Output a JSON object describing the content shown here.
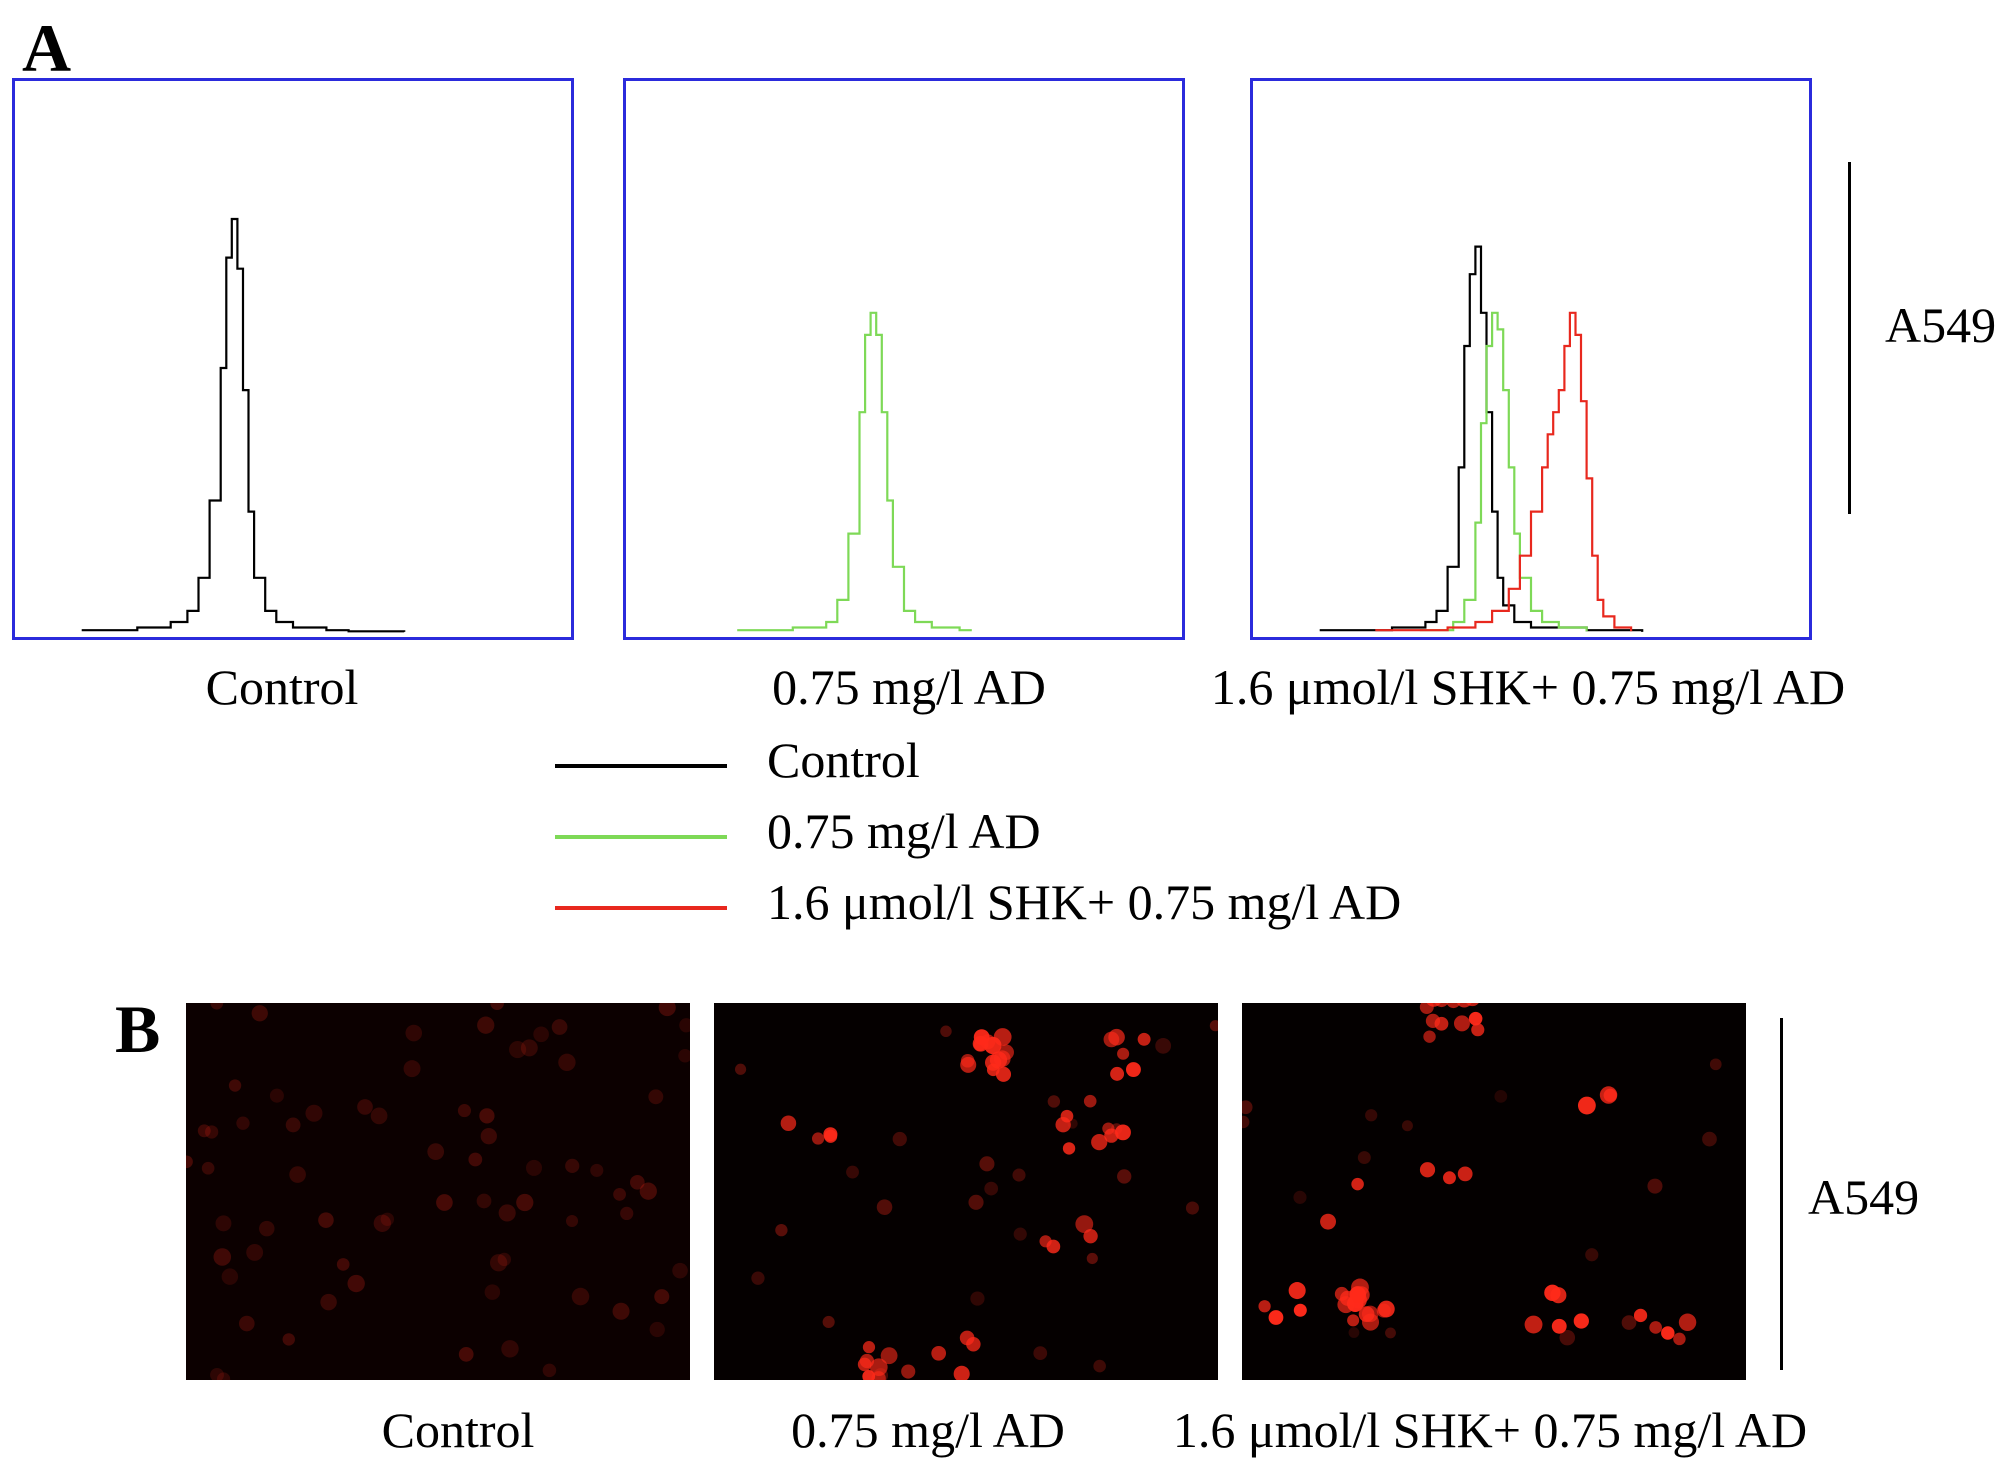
{
  "panel_a": {
    "letter": "A",
    "side_label": "A549",
    "captions": [
      "Control",
      "0.75 mg/l AD",
      "1.6 μmol/l  SHK+ 0.75 mg/l AD"
    ],
    "legend": [
      {
        "label": "Control",
        "color": "#000000"
      },
      {
        "label": "0.75 mg/l AD",
        "color": "#7ed957"
      },
      {
        "label": "1.6 μmol/l  SHK+ 0.75 mg/l AD",
        "color": "#e8281e"
      }
    ]
  },
  "panel_b": {
    "letter": "B",
    "side_label": "A549",
    "captions": [
      "Control",
      "0.75 mg/l AD",
      "1.6 μmol/l  SHK+ 0.75 mg/l AD"
    ]
  },
  "colors": {
    "frame": "#2b2bdc",
    "control": "#000000",
    "ad": "#7ed957",
    "shk_ad": "#e8281e",
    "fluorescence": "#ff2a1a"
  },
  "chart_data": [
    {
      "type": "line",
      "panel": "Control",
      "xlim": [
        0,
        100
      ],
      "ylim": [
        0,
        100
      ],
      "series": [
        {
          "label_ref": "Control",
          "color": "#000000",
          "x": [
            12,
            22,
            28,
            31,
            33,
            35,
            37,
            38,
            39,
            40,
            41,
            42,
            43,
            45,
            47,
            50,
            56,
            60,
            70
          ],
          "y": [
            0.5,
            1,
            2,
            4,
            10,
            24,
            48,
            68,
            75,
            66,
            44,
            22,
            10,
            4,
            2,
            1,
            0.5,
            0.3,
            0.2
          ]
        }
      ]
    },
    {
      "type": "line",
      "panel": "0.75 mg/l AD",
      "xlim": [
        0,
        100
      ],
      "ylim": [
        0,
        100
      ],
      "series": [
        {
          "label_ref": "0.75 mg/l AD",
          "color": "#7ed957",
          "x": [
            20,
            30,
            36,
            38,
            40,
            42,
            43,
            44,
            45,
            46,
            47,
            48,
            50,
            52,
            55,
            60,
            62
          ],
          "y": [
            0.5,
            1,
            2,
            6,
            18,
            40,
            54,
            58,
            54,
            40,
            24,
            12,
            4,
            2,
            1,
            0.5,
            0.3
          ]
        }
      ]
    },
    {
      "type": "line",
      "panel": "1.6 μmol/l  SHK+ 0.75 mg/l AD",
      "xlim": [
        0,
        100
      ],
      "ylim": [
        0,
        100
      ],
      "series": [
        {
          "label_ref": "Control",
          "color": "#000000",
          "x": [
            12,
            25,
            31,
            33,
            35,
            37,
            38,
            39,
            40,
            41,
            42,
            43,
            44,
            45,
            47,
            50,
            60,
            70
          ],
          "y": [
            0.5,
            1,
            2,
            4,
            12,
            30,
            52,
            65,
            70,
            58,
            40,
            22,
            10,
            5,
            2,
            1,
            0.5,
            0.2
          ]
        },
        {
          "label_ref": "0.75 mg/l AD",
          "color": "#7ed957",
          "x": [
            30,
            36,
            38,
            40,
            41,
            42,
            43,
            44,
            45,
            46,
            47,
            48,
            50,
            52,
            55,
            60
          ],
          "y": [
            0.5,
            2,
            6,
            20,
            38,
            52,
            58,
            55,
            44,
            30,
            18,
            10,
            4,
            2,
            1,
            0.3
          ]
        },
        {
          "label_ref": "1.6 μmol/l  SHK+ 0.75 mg/l AD",
          "color": "#e8281e",
          "x": [
            22,
            35,
            40,
            43,
            46,
            48,
            50,
            52,
            53,
            54,
            55,
            56,
            57,
            58,
            59,
            60,
            61,
            62,
            63,
            65,
            68
          ],
          "y": [
            0.5,
            1,
            2,
            4,
            8,
            14,
            22,
            30,
            36,
            40,
            44,
            52,
            58,
            54,
            42,
            28,
            14,
            6,
            3,
            1,
            0.3
          ]
        }
      ]
    }
  ]
}
